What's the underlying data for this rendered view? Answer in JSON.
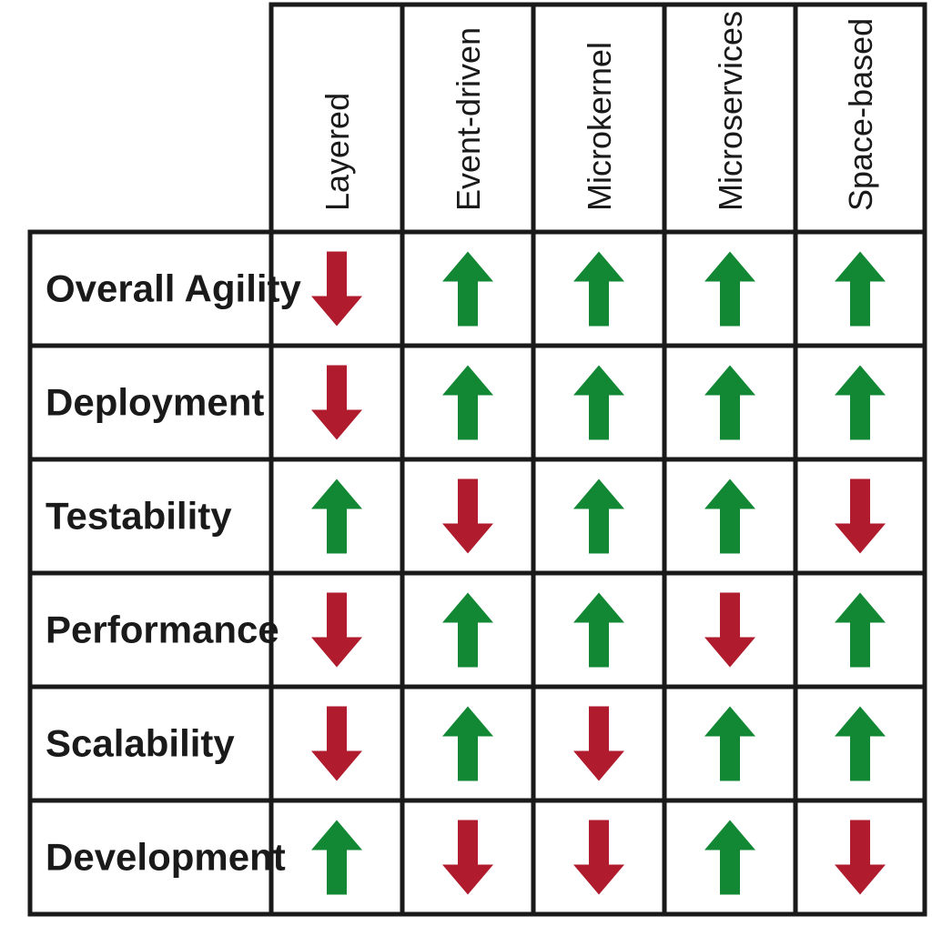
{
  "columns": [
    "Layered",
    "Event-driven",
    "Microkernel",
    "Microservices",
    "Space-based"
  ],
  "rows": [
    {
      "label": "Overall Agility",
      "ratings": [
        "down",
        "up",
        "up",
        "up",
        "up"
      ]
    },
    {
      "label": "Deployment",
      "ratings": [
        "down",
        "up",
        "up",
        "up",
        "up"
      ]
    },
    {
      "label": "Testability",
      "ratings": [
        "up",
        "down",
        "up",
        "up",
        "down"
      ]
    },
    {
      "label": "Performance",
      "ratings": [
        "down",
        "up",
        "up",
        "down",
        "up"
      ]
    },
    {
      "label": "Scalability",
      "ratings": [
        "down",
        "up",
        "down",
        "up",
        "up"
      ]
    },
    {
      "label": "Development",
      "ratings": [
        "up",
        "down",
        "down",
        "up",
        "down"
      ]
    }
  ],
  "icons": {
    "up": "arrow-up-icon",
    "down": "arrow-down-icon"
  },
  "colors": {
    "up": "#138834",
    "down": "#b01c2e",
    "border": "#1a1a1a"
  }
}
